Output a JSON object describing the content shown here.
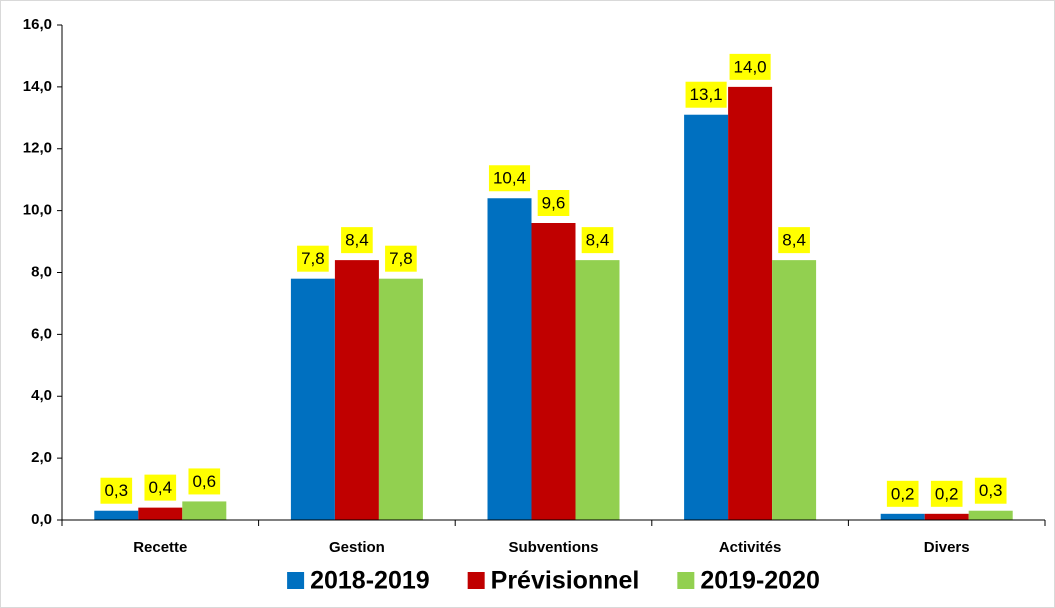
{
  "chart_data": {
    "type": "bar",
    "categories": [
      "Recette",
      "Gestion",
      "Subventions",
      "Activités",
      "Divers"
    ],
    "series": [
      {
        "name": "2018-2019",
        "color": "#0070c0",
        "values": [
          0.3,
          7.8,
          10.4,
          13.1,
          0.2
        ],
        "value_labels": [
          "0,3",
          "7,8",
          "10,4",
          "13,1",
          "0,2"
        ]
      },
      {
        "name": "Prévisionnel",
        "color": "#c00000",
        "values": [
          0.4,
          8.4,
          9.6,
          14.0,
          0.2
        ],
        "value_labels": [
          "0,4",
          "8,4",
          "9,6",
          "14,0",
          "0,2"
        ]
      },
      {
        "name": "2019-2020",
        "color": "#92d050",
        "values": [
          0.6,
          7.8,
          8.4,
          8.4,
          0.3
        ],
        "value_labels": [
          "0,6",
          "7,8",
          "8,4",
          "8,4",
          "0,3"
        ]
      }
    ],
    "ylim": [
      0,
      16
    ],
    "yticks": [
      {
        "value": 0,
        "label": "0,0"
      },
      {
        "value": 2,
        "label": "2,0"
      },
      {
        "value": 4,
        "label": "4,0"
      },
      {
        "value": 6,
        "label": "6,0"
      },
      {
        "value": 8,
        "label": "8,0"
      },
      {
        "value": 10,
        "label": "10,0"
      },
      {
        "value": 12,
        "label": "12,0"
      },
      {
        "value": 14,
        "label": "14,0"
      },
      {
        "value": 16,
        "label": "16,0"
      }
    ],
    "legend": "bottom",
    "grid": false
  }
}
